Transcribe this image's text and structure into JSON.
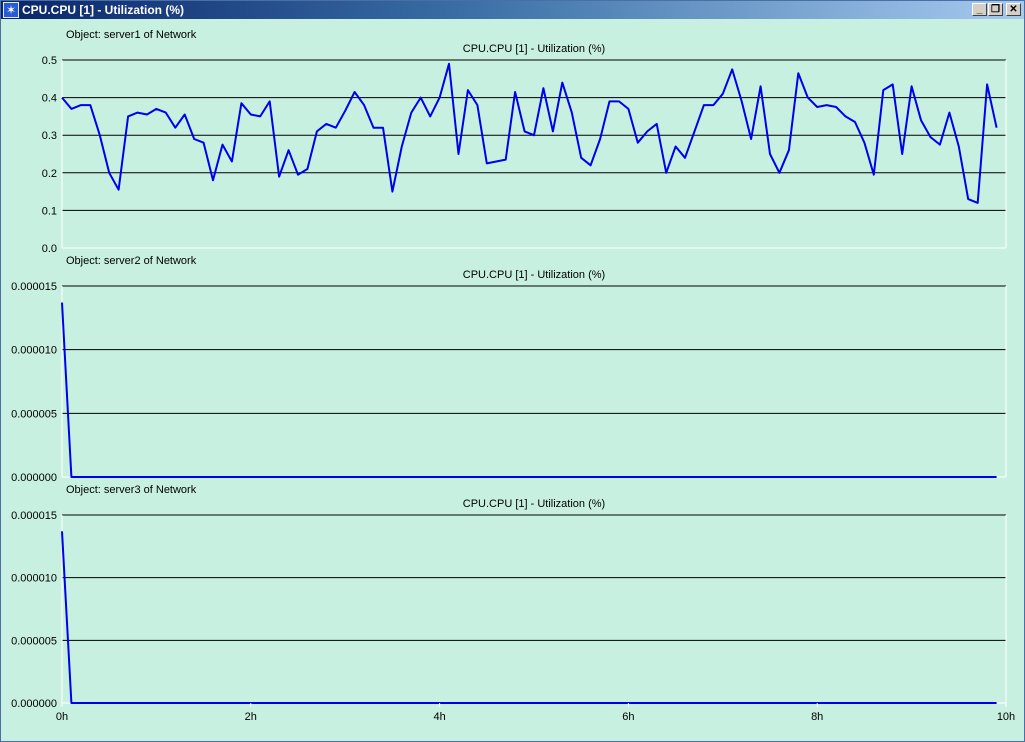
{
  "window": {
    "title": "CPU.CPU [1] - Utilization (%)",
    "controls": {
      "minimize": "_",
      "restore": "❐",
      "close": "✕"
    }
  },
  "colors": {
    "background": "#c8f0e0",
    "line": "#0000ee",
    "grid": "#000000",
    "axis": "#ffffff"
  },
  "chart_data": [
    {
      "type": "line",
      "object_label": "Object: server1 of Network",
      "title": "CPU.CPU [1] - Utilization (%)",
      "xlim": [
        0,
        10
      ],
      "ylim": [
        0,
        0.5
      ],
      "yticks": [
        0,
        0.1,
        0.2,
        0.3,
        0.4,
        0.5
      ],
      "ytick_labels": [
        "0.0",
        "0.1",
        "0.2",
        "0.3",
        "0.4",
        "0.5"
      ],
      "grid": true,
      "series": [
        {
          "x": [
            0,
            0.1,
            0.2,
            0.3,
            0.4,
            0.5,
            0.6,
            0.7,
            0.8,
            0.9,
            1.0,
            1.1,
            1.2,
            1.3,
            1.4,
            1.5,
            1.6,
            1.7,
            1.8,
            1.9,
            2.0,
            2.1,
            2.2,
            2.3,
            2.4,
            2.5,
            2.6,
            2.7,
            2.8,
            2.9,
            3.0,
            3.1,
            3.2,
            3.3,
            3.4,
            3.5,
            3.6,
            3.7,
            3.8,
            3.9,
            4.0,
            4.1,
            4.2,
            4.3,
            4.4,
            4.5,
            4.6,
            4.7,
            4.8,
            4.9,
            5.0,
            5.1,
            5.2,
            5.3,
            5.4,
            5.5,
            5.6,
            5.7,
            5.8,
            5.9,
            6.0,
            6.1,
            6.2,
            6.3,
            6.4,
            6.5,
            6.6,
            6.7,
            6.8,
            6.9,
            7.0,
            7.1,
            7.2,
            7.3,
            7.4,
            7.5,
            7.6,
            7.7,
            7.8,
            7.9,
            8.0,
            8.1,
            8.2,
            8.3,
            8.4,
            8.5,
            8.6,
            8.7,
            8.8,
            8.9,
            9.0,
            9.1,
            9.2,
            9.3,
            9.4,
            9.5,
            9.6,
            9.7,
            9.8,
            9.9
          ],
          "values": [
            0.4,
            0.37,
            0.38,
            0.38,
            0.3,
            0.2,
            0.155,
            0.35,
            0.36,
            0.355,
            0.37,
            0.36,
            0.32,
            0.355,
            0.29,
            0.28,
            0.18,
            0.275,
            0.23,
            0.385,
            0.355,
            0.35,
            0.39,
            0.19,
            0.26,
            0.195,
            0.21,
            0.31,
            0.33,
            0.32,
            0.365,
            0.415,
            0.38,
            0.32,
            0.32,
            0.15,
            0.27,
            0.36,
            0.4,
            0.35,
            0.4,
            0.49,
            0.25,
            0.42,
            0.38,
            0.225,
            0.23,
            0.235,
            0.415,
            0.31,
            0.3,
            0.425,
            0.31,
            0.44,
            0.36,
            0.24,
            0.22,
            0.29,
            0.39,
            0.39,
            0.37,
            0.28,
            0.31,
            0.33,
            0.2,
            0.27,
            0.24,
            0.31,
            0.38,
            0.38,
            0.41,
            0.475,
            0.39,
            0.29,
            0.43,
            0.25,
            0.2,
            0.26,
            0.465,
            0.4,
            0.375,
            0.38,
            0.375,
            0.35,
            0.335,
            0.28,
            0.195,
            0.42,
            0.435,
            0.25,
            0.43,
            0.34,
            0.295,
            0.275,
            0.36,
            0.27,
            0.13,
            0.12,
            0.435,
            0.32
          ]
        }
      ]
    },
    {
      "type": "line",
      "object_label": "Object: server2 of Network",
      "title": "CPU.CPU [1] - Utilization (%)",
      "xlim": [
        0,
        10
      ],
      "ylim": [
        0,
        1.5e-05
      ],
      "yticks": [
        0,
        5e-06,
        1e-05,
        1.5e-05
      ],
      "ytick_labels": [
        "0.000000",
        "0.000005",
        "0.000010",
        "0.000015"
      ],
      "grid": true,
      "series": [
        {
          "x": [
            0,
            0.1,
            9.9
          ],
          "values": [
            1.37e-05,
            0,
            0
          ]
        }
      ]
    },
    {
      "type": "line",
      "object_label": "Object: server3 of Network",
      "title": "CPU.CPU [1] - Utilization (%)",
      "xlim": [
        0,
        10
      ],
      "ylim": [
        0,
        1.5e-05
      ],
      "yticks": [
        0,
        5e-06,
        1e-05,
        1.5e-05
      ],
      "ytick_labels": [
        "0.000000",
        "0.000005",
        "0.000010",
        "0.000015"
      ],
      "grid": true,
      "xticks": [
        0,
        2,
        4,
        6,
        8,
        10
      ],
      "xtick_labels": [
        "0h",
        "2h",
        "4h",
        "6h",
        "8h",
        "10h"
      ],
      "series": [
        {
          "x": [
            0,
            0.1,
            9.9
          ],
          "values": [
            1.37e-05,
            0,
            0
          ]
        }
      ]
    }
  ]
}
